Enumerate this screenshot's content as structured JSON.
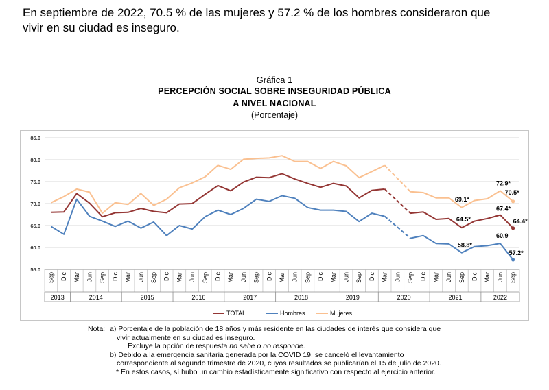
{
  "intro": {
    "line1": "En septiembre de 2022, 70.5 % de las mujeres y 57.2 % de los hombres consideraron que",
    "line2": "vivir en su ciudad es inseguro."
  },
  "figure": {
    "label": "Gráfica 1",
    "title_line1": "PERCEPCIÓN SOCIAL SOBRE INSEGURIDAD PÚBLICA",
    "title_line2": "A NIVEL NACIONAL",
    "subtitle": "(Porcentaje)"
  },
  "chart_data": {
    "type": "line",
    "title": "Percepción social sobre inseguridad pública a nivel nacional",
    "ylabel": "Porcentaje",
    "ylim": [
      55,
      85
    ],
    "yticks": [
      "85.0",
      "80.0",
      "75.0",
      "70.0",
      "65.0",
      "60.0",
      "55.0"
    ],
    "categories": [
      "Sep",
      "Dic",
      "Mar",
      "Jun",
      "Sep",
      "Dic",
      "Mar",
      "Jun",
      "Sep",
      "Dic",
      "Mar",
      "Jun",
      "Sep",
      "Dic",
      "Mar",
      "Jun",
      "Sep",
      "Dic",
      "Mar",
      "Jun",
      "Sep",
      "Dic",
      "Mar",
      "Jun",
      "Sep",
      "Dic",
      "Mar",
      "Jun",
      "Sep",
      "Dic",
      "Mar",
      "Jun",
      "Sep",
      "Dic",
      "Mar",
      "Jun",
      "Sep"
    ],
    "years": [
      {
        "label": "2013",
        "from": 0,
        "to": 1
      },
      {
        "label": "2014",
        "from": 2,
        "to": 5
      },
      {
        "label": "2015",
        "from": 6,
        "to": 9
      },
      {
        "label": "2016",
        "from": 10,
        "to": 13
      },
      {
        "label": "2017",
        "from": 14,
        "to": 17
      },
      {
        "label": "2018",
        "from": 18,
        "to": 21
      },
      {
        "label": "2019",
        "from": 22,
        "to": 25
      },
      {
        "label": "2020",
        "from": 26,
        "to": 29
      },
      {
        "label": "2021",
        "from": 30,
        "to": 33
      },
      {
        "label": "2022",
        "from": 34,
        "to": 36
      }
    ],
    "missing_index": 27,
    "series": [
      {
        "name": "TOTAL",
        "color": "#943634",
        "values": [
          68.0,
          68.1,
          72.3,
          70.1,
          67.0,
          67.9,
          68.0,
          68.9,
          68.2,
          67.9,
          69.9,
          70.0,
          72.1,
          74.1,
          72.9,
          74.9,
          76.0,
          75.9,
          76.8,
          75.6,
          74.6,
          73.7,
          74.6,
          74.0,
          71.3,
          73.0,
          73.3,
          null,
          67.8,
          68.1,
          66.4,
          66.6,
          64.5,
          66.0,
          66.6,
          67.4,
          64.4
        ]
      },
      {
        "name": "Hombres",
        "color": "#4f81bd",
        "values": [
          64.8,
          63.0,
          71.0,
          67.1,
          66.0,
          64.8,
          66.0,
          64.4,
          65.8,
          62.7,
          65.0,
          64.2,
          67.0,
          68.5,
          67.5,
          68.9,
          71.0,
          70.5,
          71.8,
          71.2,
          69.1,
          68.5,
          68.5,
          68.2,
          65.9,
          67.8,
          67.1,
          null,
          62.1,
          62.7,
          60.9,
          60.8,
          58.8,
          60.2,
          60.4,
          60.9,
          57.2
        ]
      },
      {
        "name": "Mujeres",
        "color": "#fac090",
        "values": [
          70.2,
          71.6,
          73.3,
          72.6,
          67.8,
          70.2,
          69.8,
          72.3,
          69.6,
          71.0,
          73.6,
          74.7,
          76.1,
          78.7,
          77.8,
          80.1,
          80.3,
          80.4,
          80.9,
          79.6,
          79.6,
          78.0,
          79.6,
          78.6,
          75.9,
          77.3,
          78.7,
          null,
          72.7,
          72.5,
          71.3,
          71.3,
          69.1,
          70.7,
          71.1,
          72.9,
          70.5
        ]
      }
    ],
    "annotations": [
      {
        "series": "Mujeres",
        "index": 32,
        "text": "69.1*"
      },
      {
        "series": "Mujeres",
        "index": 35,
        "text": "72.9*"
      },
      {
        "series": "Mujeres",
        "index": 36,
        "text": "70.5*"
      },
      {
        "series": "TOTAL",
        "index": 32,
        "text": "64.5*"
      },
      {
        "series": "TOTAL",
        "index": 35,
        "text": "67.4*"
      },
      {
        "series": "TOTAL",
        "index": 36,
        "text": "64.4*"
      },
      {
        "series": "Hombres",
        "index": 32,
        "text": "58.8*"
      },
      {
        "series": "Hombres",
        "index": 35,
        "text": "60.9"
      },
      {
        "series": "Hombres",
        "index": 36,
        "text": "57.2*"
      }
    ],
    "legend": [
      "TOTAL",
      "Hombres",
      "Mujeres"
    ],
    "legend_position": "bottom",
    "grid": true
  },
  "notes": {
    "prefix": "Nota:",
    "a1": "a) Porcentaje de la población de 18 años y más residente en las ciudades de interés que considera que",
    "a2": "vivir actualmente en su ciudad es inseguro.",
    "ex_pre": "Excluye la opción de respuesta ",
    "ex_em": "no sabe o no responde",
    "ex_post": ".",
    "b1": "b) Debido a la emergencia sanitaria generada por la COVID 19, se canceló el levantamiento",
    "b2": "correspondiente al segundo trimestre de 2020, cuyos resultados se publicarían el 15 de julio de 2020.",
    "star": "* En estos casos, sí hubo un cambio estadísticamente significativo con respecto al ejercicio anterior."
  }
}
